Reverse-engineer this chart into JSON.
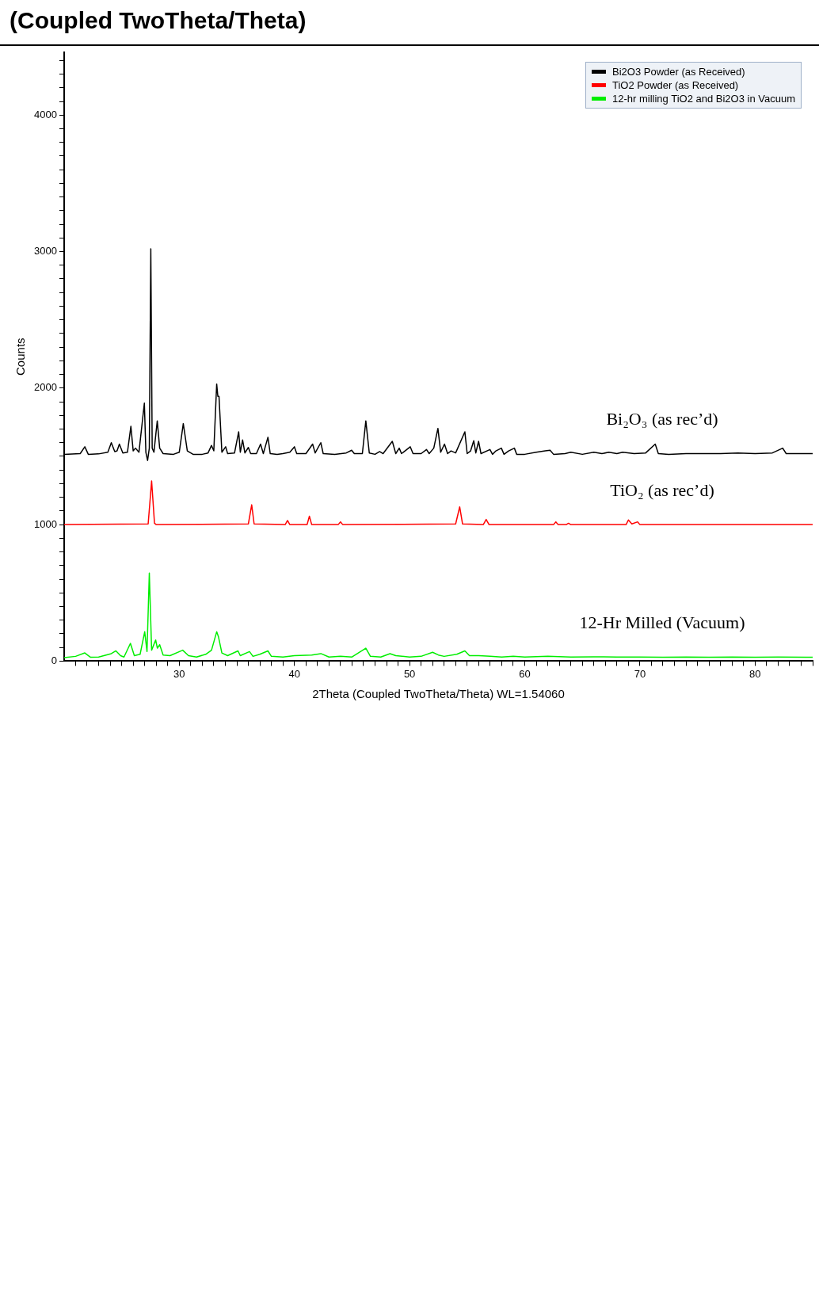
{
  "chart_data": {
    "type": "line",
    "title": "(Coupled TwoTheta/Theta)",
    "xlabel": "2Theta (Coupled TwoTheta/Theta) WL=1.54060",
    "ylabel": "Counts",
    "xlim": [
      20,
      85
    ],
    "ylim": [
      0,
      4460
    ],
    "xticks": [
      {
        "value": 21,
        "label": null
      },
      {
        "value": 22,
        "label": null
      },
      {
        "value": 23,
        "label": null
      },
      {
        "value": 24,
        "label": null
      },
      {
        "value": 25,
        "label": null
      },
      {
        "value": 26,
        "label": null
      },
      {
        "value": 27,
        "label": null
      },
      {
        "value": 28,
        "label": null
      },
      {
        "value": 29,
        "label": null
      },
      30,
      {
        "value": 31,
        "label": null
      },
      {
        "value": 32,
        "label": null
      },
      {
        "value": 33,
        "label": null
      },
      {
        "value": 34,
        "label": null
      },
      {
        "value": 35,
        "label": null
      },
      {
        "value": 36,
        "label": null
      },
      {
        "value": 37,
        "label": null
      },
      {
        "value": 38,
        "label": null
      },
      {
        "value": 39,
        "label": null
      },
      40,
      {
        "value": 41,
        "label": null
      },
      {
        "value": 42,
        "label": null
      },
      {
        "value": 43,
        "label": null
      },
      {
        "value": 44,
        "label": null
      },
      {
        "value": 45,
        "label": null
      },
      {
        "value": 46,
        "label": null
      },
      {
        "value": 47,
        "label": null
      },
      {
        "value": 48,
        "label": null
      },
      {
        "value": 49,
        "label": null
      },
      50,
      {
        "value": 51,
        "label": null
      },
      {
        "value": 52,
        "label": null
      },
      {
        "value": 53,
        "label": null
      },
      {
        "value": 54,
        "label": null
      },
      {
        "value": 55,
        "label": null
      },
      {
        "value": 56,
        "label": null
      },
      {
        "value": 57,
        "label": null
      },
      {
        "value": 58,
        "label": null
      },
      {
        "value": 59,
        "label": null
      },
      60,
      {
        "value": 61,
        "label": null
      },
      {
        "value": 62,
        "label": null
      },
      {
        "value": 63,
        "label": null
      },
      {
        "value": 64,
        "label": null
      },
      {
        "value": 65,
        "label": null
      },
      {
        "value": 66,
        "label": null
      },
      {
        "value": 67,
        "label": null
      },
      {
        "value": 68,
        "label": null
      },
      {
        "value": 69,
        "label": null
      },
      70,
      {
        "value": 71,
        "label": null
      },
      {
        "value": 72,
        "label": null
      },
      {
        "value": 73,
        "label": null
      },
      {
        "value": 74,
        "label": null
      },
      {
        "value": 75,
        "label": null
      },
      {
        "value": 76,
        "label": null
      },
      {
        "value": 77,
        "label": null
      },
      {
        "value": 78,
        "label": null
      },
      {
        "value": 79,
        "label": null
      },
      80,
      {
        "value": 81,
        "label": null
      },
      {
        "value": 82,
        "label": null
      },
      {
        "value": 83,
        "label": null
      },
      {
        "value": 84,
        "label": null
      },
      {
        "value": 85,
        "label": null
      }
    ],
    "yticks": [
      0,
      {
        "value": 100,
        "label": null
      },
      {
        "value": 200,
        "label": null
      },
      {
        "value": 300,
        "label": null
      },
      {
        "value": 400,
        "label": null
      },
      {
        "value": 500,
        "label": null
      },
      {
        "value": 600,
        "label": null
      },
      {
        "value": 700,
        "label": null
      },
      {
        "value": 800,
        "label": null
      },
      {
        "value": 900,
        "label": null
      },
      1000,
      {
        "value": 1100,
        "label": null
      },
      {
        "value": 1200,
        "label": null
      },
      {
        "value": 1300,
        "label": null
      },
      {
        "value": 1400,
        "label": null
      },
      {
        "value": 1500,
        "label": null
      },
      {
        "value": 1600,
        "label": null
      },
      {
        "value": 1700,
        "label": null
      },
      {
        "value": 1800,
        "label": null
      },
      {
        "value": 1900,
        "label": null
      },
      2000,
      {
        "value": 2100,
        "label": null
      },
      {
        "value": 2200,
        "label": null
      },
      {
        "value": 2300,
        "label": null
      },
      {
        "value": 2400,
        "label": null
      },
      {
        "value": 2500,
        "label": null
      },
      {
        "value": 2600,
        "label": null
      },
      {
        "value": 2700,
        "label": null
      },
      {
        "value": 2800,
        "label": null
      },
      {
        "value": 2900,
        "label": null
      },
      3000,
      {
        "value": 3100,
        "label": null
      },
      {
        "value": 3200,
        "label": null
      },
      {
        "value": 3300,
        "label": null
      },
      {
        "value": 3400,
        "label": null
      },
      {
        "value": 3500,
        "label": null
      },
      {
        "value": 3600,
        "label": null
      },
      {
        "value": 3700,
        "label": null
      },
      {
        "value": 3800,
        "label": null
      },
      {
        "value": 3900,
        "label": null
      },
      4000,
      {
        "value": 4100,
        "label": null
      },
      {
        "value": 4200,
        "label": null
      },
      {
        "value": 4300,
        "label": null
      },
      {
        "value": 4400,
        "label": null
      }
    ],
    "legend": "top right",
    "marker": "none",
    "line_style": "solid",
    "annotations": [
      "Bi₂O₃ (as rec’d)",
      "TiO₂ (as rec’d)",
      "12-Hr Milled (Vacuum)"
    ],
    "series": [
      {
        "name": "Bi2O3 Powder (as Received)",
        "color": "#000000",
        "x": [
          20,
          21.4,
          21.8,
          22.1,
          23,
          23.8,
          24.1,
          24.4,
          24.6,
          24.8,
          25.1,
          25.5,
          25.8,
          26,
          26.2,
          26.5,
          26.97,
          27.1,
          27.25,
          27.4,
          27.53,
          27.65,
          27.8,
          28.09,
          28.3,
          28.6,
          29.5,
          30,
          30.35,
          30.7,
          31.2,
          32,
          32.5,
          32.8,
          33,
          33.25,
          33.35,
          33.45,
          33.7,
          34.03,
          34.2,
          34.8,
          35.16,
          35.3,
          35.5,
          35.7,
          36,
          36.2,
          36.7,
          37.06,
          37.3,
          37.7,
          37.9,
          38.5,
          39,
          39.6,
          40,
          40.2,
          41,
          41.58,
          41.8,
          42.29,
          42.5,
          43.5,
          44.5,
          44.97,
          45.2,
          45.9,
          46.2,
          46.5,
          47,
          47.4,
          47.7,
          48.5,
          48.8,
          49.1,
          49.3,
          50.06,
          50.3,
          51,
          51.47,
          51.7,
          52.1,
          52.46,
          52.7,
          53.03,
          53.3,
          53.6,
          54,
          54.8,
          55,
          55.3,
          55.57,
          55.75,
          55.99,
          56.2,
          56.98,
          57.2,
          57.5,
          57.97,
          58.2,
          58.6,
          59.1,
          59.3,
          60,
          61,
          61.78,
          62.2,
          62.5,
          63.5,
          64,
          65,
          66,
          66.7,
          67.3,
          68,
          68.5,
          69.5,
          70.5,
          71.33,
          71.6,
          72.5,
          74,
          75.5,
          77,
          78.5,
          80,
          81.5,
          82.4,
          82.7,
          84,
          85
        ],
        "values": [
          1515,
          1520,
          1570,
          1515,
          1518,
          1530,
          1600,
          1535,
          1540,
          1590,
          1525,
          1530,
          1720,
          1540,
          1560,
          1530,
          1890,
          1530,
          1470,
          1560,
          3020,
          1560,
          1530,
          1760,
          1560,
          1520,
          1515,
          1530,
          1740,
          1540,
          1515,
          1515,
          1525,
          1580,
          1540,
          2030,
          1940,
          1940,
          1530,
          1570,
          1520,
          1525,
          1680,
          1530,
          1620,
          1525,
          1565,
          1520,
          1520,
          1590,
          1520,
          1640,
          1520,
          1515,
          1520,
          1530,
          1570,
          1520,
          1520,
          1590,
          1525,
          1600,
          1520,
          1515,
          1525,
          1545,
          1520,
          1520,
          1760,
          1525,
          1515,
          1535,
          1520,
          1610,
          1520,
          1560,
          1520,
          1570,
          1520,
          1520,
          1550,
          1520,
          1560,
          1705,
          1530,
          1590,
          1520,
          1540,
          1525,
          1680,
          1520,
          1540,
          1615,
          1525,
          1610,
          1520,
          1550,
          1515,
          1540,
          1560,
          1515,
          1540,
          1560,
          1515,
          1515,
          1530,
          1540,
          1545,
          1515,
          1520,
          1530,
          1515,
          1530,
          1520,
          1530,
          1520,
          1530,
          1520,
          1525,
          1590,
          1520,
          1515,
          1520,
          1520,
          1520,
          1525,
          1520,
          1525,
          1560,
          1520,
          1520,
          1520
        ]
      },
      {
        "name": "TiO2 Powder (as Received)",
        "color": "#ff0000",
        "x": [
          20,
          27.3,
          27.6,
          27.85,
          28,
          36,
          36.29,
          36.5,
          39.2,
          39.4,
          39.6,
          41.1,
          41.3,
          41.5,
          43.8,
          44,
          44.2,
          54,
          54.35,
          54.6,
          56.4,
          56.65,
          56.9,
          62.5,
          62.7,
          62.9,
          63.6,
          63.8,
          64,
          68.8,
          69,
          69.3,
          69.8,
          70,
          85
        ],
        "values": [
          1000,
          1005,
          1320,
          1010,
          1000,
          1005,
          1145,
          1005,
          1000,
          1030,
          1000,
          1000,
          1062,
          1000,
          1000,
          1020,
          1000,
          1005,
          1130,
          1005,
          1000,
          1038,
          1000,
          1000,
          1020,
          1000,
          1000,
          1010,
          1000,
          1000,
          1034,
          1005,
          1020,
          1000,
          1000
        ]
      },
      {
        "name": "12-hr milling TiO2 and Bi2O3 in Vacuum",
        "color": "#00ee00",
        "x": [
          20,
          21,
          21.8,
          22.3,
          23,
          24.1,
          24.5,
          24.9,
          25.2,
          25.76,
          26.1,
          26.6,
          27,
          27.2,
          27.4,
          27.6,
          27.95,
          28.1,
          28.3,
          28.6,
          29.2,
          30.3,
          30.8,
          31.5,
          32.3,
          32.8,
          33.25,
          33.4,
          33.7,
          34.2,
          35.1,
          35.3,
          36.1,
          36.4,
          37,
          37.7,
          38,
          39,
          40,
          41.5,
          42.3,
          43,
          44,
          45,
          46.2,
          46.6,
          47.5,
          48.3,
          48.8,
          50,
          51,
          52,
          52.5,
          53,
          54.1,
          54.8,
          55.2,
          56,
          57,
          58,
          59,
          60,
          62,
          64,
          66,
          68,
          70,
          72,
          74,
          76,
          78,
          80,
          82,
          85
        ],
        "values": [
          25,
          35,
          60,
          28,
          30,
          55,
          75,
          40,
          30,
          130,
          40,
          50,
          215,
          70,
          645,
          80,
          155,
          95,
          120,
          45,
          40,
          80,
          40,
          30,
          50,
          80,
          215,
          180,
          60,
          40,
          75,
          40,
          70,
          35,
          50,
          75,
          35,
          30,
          40,
          45,
          55,
          30,
          35,
          30,
          95,
          35,
          30,
          55,
          40,
          30,
          35,
          65,
          45,
          35,
          50,
          75,
          40,
          40,
          35,
          30,
          35,
          30,
          35,
          30,
          32,
          30,
          30,
          28,
          30,
          28,
          30,
          28,
          30,
          28
        ]
      }
    ]
  }
}
